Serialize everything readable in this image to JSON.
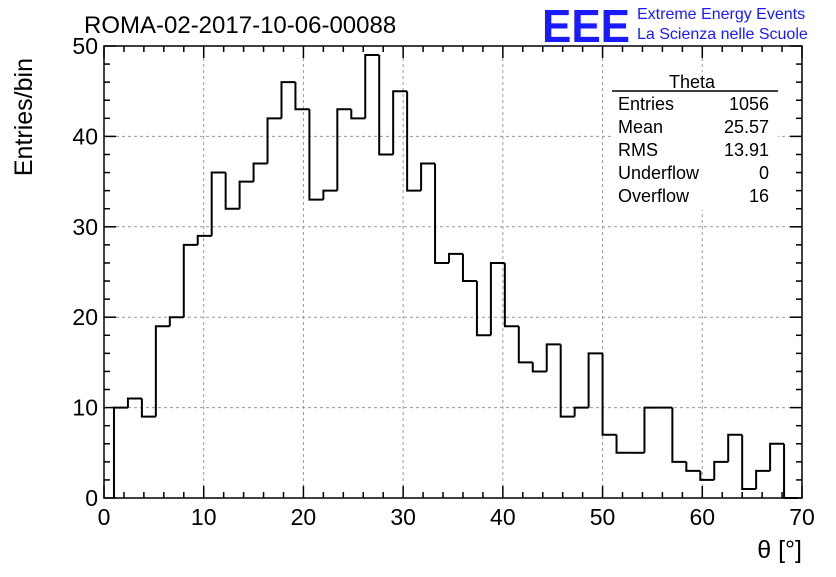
{
  "header": {
    "run_title": "ROMA-02-2017-10-06-00088",
    "logo_letters": "EEE",
    "logo_line1": "Extreme Energy Events",
    "logo_line2": "La Scienza nelle Scuole",
    "logo_color": "#1a1aff"
  },
  "stats_box": {
    "title": "Theta",
    "rows": [
      {
        "label": "Entries",
        "value": "1056"
      },
      {
        "label": "Mean",
        "value": "25.57"
      },
      {
        "label": "RMS",
        "value": "13.91"
      },
      {
        "label": "Underflow",
        "value": "0"
      },
      {
        "label": "Overflow",
        "value": "16"
      }
    ]
  },
  "chart_data": {
    "type": "bar",
    "style": "step histogram",
    "xlabel": "θ [°]",
    "ylabel": "Entries/bin",
    "xlim": [
      0,
      70
    ],
    "ylim": [
      0,
      50
    ],
    "grid": true,
    "bin_width": 1.4,
    "bin_edges_start": 1,
    "values": [
      10,
      11,
      9,
      19,
      20,
      28,
      29,
      36,
      32,
      35,
      37,
      42,
      46,
      43,
      33,
      34,
      43,
      42,
      49,
      38,
      45,
      34,
      37,
      26,
      27,
      24,
      18,
      26,
      19,
      15,
      14,
      17,
      9,
      10,
      16,
      7,
      5,
      5,
      10,
      10,
      4,
      3,
      2,
      4,
      7,
      1,
      3,
      6,
      0
    ],
    "x_ticks": [
      "0",
      "10",
      "20",
      "30",
      "40",
      "50",
      "60",
      "70"
    ],
    "y_ticks": [
      "0",
      "10",
      "20",
      "30",
      "40",
      "50"
    ],
    "line_color": "#000000",
    "grid_color": "#9a9a9a"
  }
}
